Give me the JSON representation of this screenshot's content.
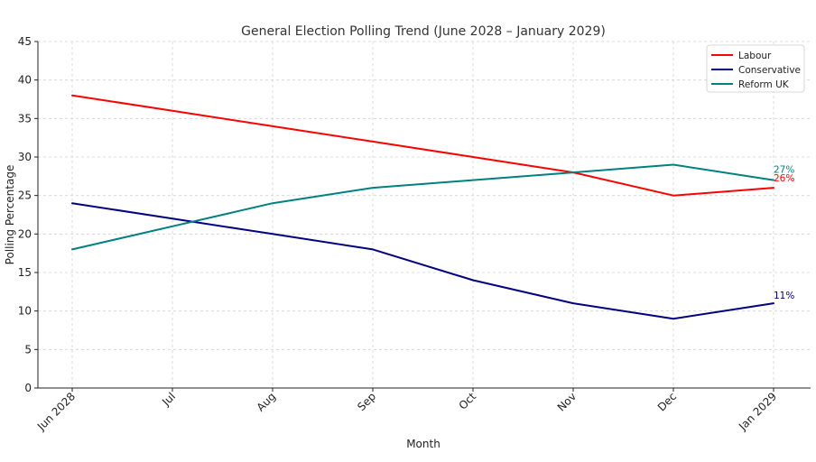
{
  "chart_data": {
    "type": "line",
    "title": "General Election Polling Trend (June 2028 – January 2029)",
    "xlabel": "Month",
    "ylabel": "Polling Percentage",
    "categories": [
      "Jun 2028",
      "Jul",
      "Aug",
      "Sep",
      "Oct",
      "Nov",
      "Dec",
      "Jan 2029"
    ],
    "ylim": [
      0,
      45
    ],
    "yticks": [
      0,
      5,
      10,
      15,
      20,
      25,
      30,
      35,
      40,
      45
    ],
    "grid": true,
    "legend_position": "top-right",
    "series": [
      {
        "name": "Labour",
        "color": "#ff0000",
        "values": [
          38,
          36,
          34,
          32,
          30,
          28,
          25,
          26
        ],
        "end_label": "26%"
      },
      {
        "name": "Conservative",
        "color": "#000080",
        "values": [
          24,
          22,
          20,
          18,
          14,
          11,
          9,
          11
        ],
        "end_label": "11%"
      },
      {
        "name": "Reform UK",
        "color": "#008080",
        "values": [
          18,
          21,
          24,
          26,
          27,
          28,
          29,
          27
        ],
        "end_label": "27%"
      }
    ]
  }
}
